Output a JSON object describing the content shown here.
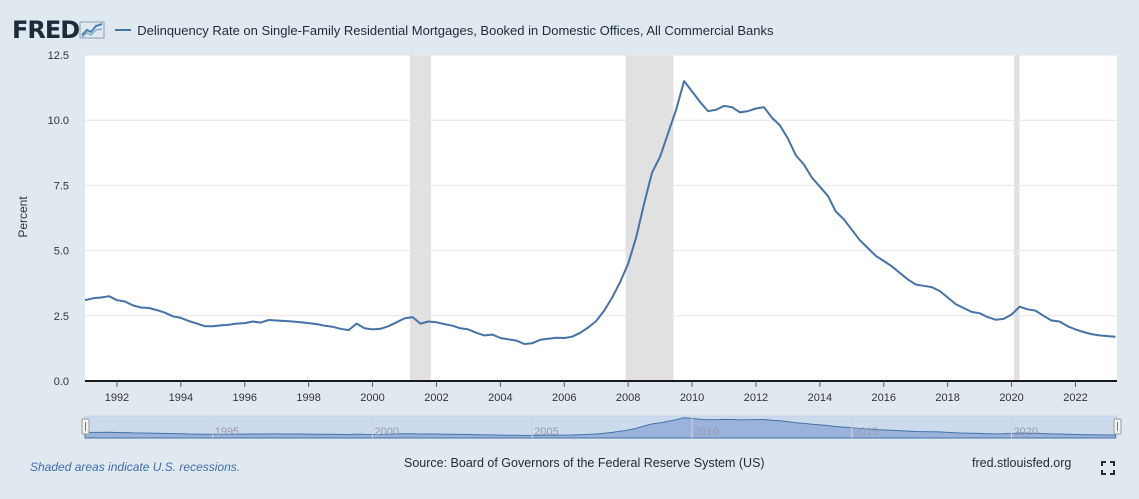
{
  "header": {
    "logo_text": "FRED",
    "series_title": "Delinquency Rate on Single-Family Residential Mortgages, Booked in Domestic Offices, All Commercial Banks"
  },
  "footer": {
    "recession_note": "Shaded areas indicate U.S. recessions.",
    "source": "Source: Board of Governors of the Federal Reserve System (US)",
    "site": "fred.stlouisfed.org"
  },
  "icons": {
    "logo": "fred-chart-icon",
    "fullscreen": "fullscreen-icon"
  },
  "colors": {
    "series": "#4572a7",
    "recession": "#e1e1e1",
    "background": "#e1e9f0",
    "navigator_fill": "#bfd0ea"
  },
  "chart_data": {
    "type": "line",
    "title": "",
    "xlabel": "",
    "ylabel": "Percent",
    "ylim": [
      0,
      12.5
    ],
    "xlim": [
      1991.0,
      2023.3
    ],
    "yticks": [
      "0.0",
      "2.5",
      "5.0",
      "7.5",
      "10.0",
      "12.5"
    ],
    "xticks": [
      "1992",
      "1994",
      "1996",
      "1998",
      "2000",
      "2002",
      "2004",
      "2006",
      "2008",
      "2010",
      "2012",
      "2014",
      "2016",
      "2018",
      "2020",
      "2022"
    ],
    "navigator_ticks": [
      "1995",
      "2000",
      "2005",
      "2010",
      "2015",
      "2020"
    ],
    "grid": true,
    "recessions": [
      [
        2001.17,
        2001.83
      ],
      [
        2007.92,
        2009.42
      ],
      [
        2020.08,
        2020.25
      ]
    ],
    "series": [
      {
        "name": "",
        "x": [
          1991.0,
          1991.25,
          1991.5,
          1991.75,
          1992.0,
          1992.25,
          1992.5,
          1992.75,
          1993.0,
          1993.25,
          1993.5,
          1993.75,
          1994.0,
          1994.25,
          1994.5,
          1994.75,
          1995.0,
          1995.25,
          1995.5,
          1995.75,
          1996.0,
          1996.25,
          1996.5,
          1996.75,
          1997.0,
          1997.25,
          1997.5,
          1997.75,
          1998.0,
          1998.25,
          1998.5,
          1998.75,
          1999.0,
          1999.25,
          1999.5,
          1999.75,
          2000.0,
          2000.25,
          2000.5,
          2000.75,
          2001.0,
          2001.25,
          2001.5,
          2001.75,
          2002.0,
          2002.25,
          2002.5,
          2002.75,
          2003.0,
          2003.25,
          2003.5,
          2003.75,
          2004.0,
          2004.25,
          2004.5,
          2004.75,
          2005.0,
          2005.25,
          2005.5,
          2005.75,
          2006.0,
          2006.25,
          2006.5,
          2006.75,
          2007.0,
          2007.25,
          2007.5,
          2007.75,
          2008.0,
          2008.25,
          2008.5,
          2008.75,
          2009.0,
          2009.25,
          2009.5,
          2009.75,
          2010.0,
          2010.25,
          2010.5,
          2010.75,
          2011.0,
          2011.25,
          2011.5,
          2011.75,
          2012.0,
          2012.25,
          2012.5,
          2012.75,
          2013.0,
          2013.25,
          2013.5,
          2013.75,
          2014.0,
          2014.25,
          2014.5,
          2014.75,
          2015.0,
          2015.25,
          2015.5,
          2015.75,
          2016.0,
          2016.25,
          2016.5,
          2016.75,
          2017.0,
          2017.25,
          2017.5,
          2017.75,
          2018.0,
          2018.25,
          2018.5,
          2018.75,
          2019.0,
          2019.25,
          2019.5,
          2019.75,
          2020.0,
          2020.25,
          2020.5,
          2020.75,
          2021.0,
          2021.25,
          2021.5,
          2021.75,
          2022.0,
          2022.25,
          2022.5,
          2022.75,
          2023.0,
          2023.25
        ],
        "values": [
          3.1,
          3.17,
          3.2,
          3.25,
          3.1,
          3.05,
          2.9,
          2.82,
          2.8,
          2.72,
          2.62,
          2.48,
          2.42,
          2.3,
          2.2,
          2.1,
          2.1,
          2.13,
          2.16,
          2.2,
          2.22,
          2.28,
          2.24,
          2.34,
          2.32,
          2.3,
          2.28,
          2.25,
          2.22,
          2.18,
          2.12,
          2.08,
          2.0,
          1.95,
          2.2,
          2.02,
          1.98,
          2.0,
          2.1,
          2.25,
          2.4,
          2.45,
          2.2,
          2.28,
          2.25,
          2.18,
          2.12,
          2.02,
          1.98,
          1.85,
          1.75,
          1.78,
          1.65,
          1.6,
          1.55,
          1.42,
          1.45,
          1.58,
          1.62,
          1.66,
          1.65,
          1.7,
          1.85,
          2.05,
          2.3,
          2.7,
          3.2,
          3.8,
          4.5,
          5.5,
          6.8,
          8.0,
          8.6,
          9.5,
          10.4,
          11.5,
          11.1,
          10.7,
          10.35,
          10.4,
          10.55,
          10.5,
          10.3,
          10.35,
          10.45,
          10.5,
          10.1,
          9.8,
          9.3,
          8.65,
          8.3,
          7.8,
          7.45,
          7.1,
          6.5,
          6.2,
          5.8,
          5.4,
          5.1,
          4.8,
          4.6,
          4.4,
          4.15,
          3.9,
          3.7,
          3.65,
          3.6,
          3.45,
          3.2,
          2.95,
          2.8,
          2.65,
          2.6,
          2.45,
          2.35,
          2.38,
          2.55,
          2.85,
          2.75,
          2.7,
          2.5,
          2.32,
          2.28,
          2.1,
          1.98,
          1.88,
          1.8,
          1.75,
          1.72,
          1.7
        ]
      }
    ]
  }
}
